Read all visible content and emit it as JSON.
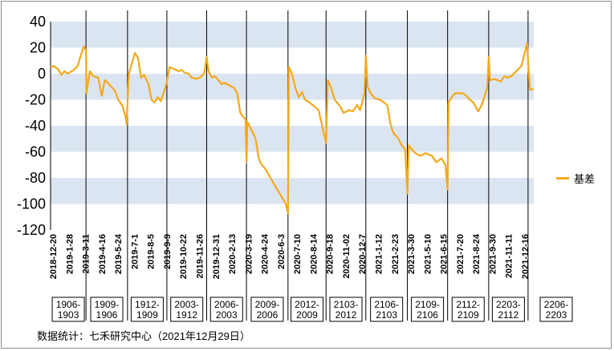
{
  "chart_data": {
    "type": "line",
    "ylim": [
      -120,
      40
    ],
    "yticks": [
      40,
      20,
      0,
      -20,
      -40,
      -60,
      -80,
      -100,
      -120
    ],
    "grid_bands": true,
    "legend_position": "right",
    "series": [
      {
        "name": "基差",
        "color": "#f5a81a",
        "points": [
          [
            "2018-12-20",
            5
          ],
          [
            "2018-12-28",
            6
          ],
          [
            "2019-01-07",
            3
          ],
          [
            "2019-01-14",
            -1
          ],
          [
            "2019-01-21",
            2
          ],
          [
            "2019-01-28",
            0
          ],
          [
            "2019-02-11",
            3
          ],
          [
            "2019-02-20",
            6
          ],
          [
            "2019-02-27",
            14
          ],
          [
            "2019-03-06",
            21
          ],
          [
            "2019-03-11",
            18
          ],
          [
            "2019-03-12",
            -15
          ],
          [
            "2019-03-20",
            2
          ],
          [
            "2019-03-28",
            -2
          ],
          [
            "2019-04-08",
            -3
          ],
          [
            "2019-04-16",
            -17
          ],
          [
            "2019-04-23",
            -5
          ],
          [
            "2019-04-30",
            -7
          ],
          [
            "2019-05-08",
            -10
          ],
          [
            "2019-05-16",
            -13
          ],
          [
            "2019-05-24",
            -20
          ],
          [
            "2019-06-03",
            -25
          ],
          [
            "2019-06-10",
            -34
          ],
          [
            "2019-06-12",
            -39
          ],
          [
            "2019-06-14",
            -22
          ],
          [
            "2019-06-17",
            0
          ],
          [
            "2019-06-24",
            8
          ],
          [
            "2019-07-01",
            16
          ],
          [
            "2019-07-08",
            12
          ],
          [
            "2019-07-15",
            -3
          ],
          [
            "2019-07-22",
            -1
          ],
          [
            "2019-08-01",
            -8
          ],
          [
            "2019-08-08",
            -20
          ],
          [
            "2019-08-15",
            -22
          ],
          [
            "2019-08-22",
            -18
          ],
          [
            "2019-08-29",
            -21
          ],
          [
            "2019-09-09",
            -10
          ],
          [
            "2019-09-12",
            -6
          ],
          [
            "2019-09-18",
            5
          ],
          [
            "2019-09-26",
            4
          ],
          [
            "2019-10-09",
            2
          ],
          [
            "2019-10-16",
            3
          ],
          [
            "2019-10-22",
            1
          ],
          [
            "2019-11-01",
            0
          ],
          [
            "2019-11-08",
            -3
          ],
          [
            "2019-11-18",
            -4
          ],
          [
            "2019-11-26",
            -3
          ],
          [
            "2019-12-06",
            0
          ],
          [
            "2019-12-12",
            13
          ],
          [
            "2019-12-16",
            2
          ],
          [
            "2019-12-24",
            -3
          ],
          [
            "2019-12-31",
            -2
          ],
          [
            "2020-01-08",
            -5
          ],
          [
            "2020-01-15",
            -8
          ],
          [
            "2020-01-22",
            -7
          ],
          [
            "2020-02-03",
            -9
          ],
          [
            "2020-02-07",
            -10
          ],
          [
            "2020-02-13",
            -11
          ],
          [
            "2020-02-20",
            -15
          ],
          [
            "2020-02-27",
            -30
          ],
          [
            "2020-03-04",
            -33
          ],
          [
            "2020-03-10",
            -35
          ],
          [
            "2020-03-12",
            -68
          ],
          [
            "2020-03-14",
            -37
          ],
          [
            "2020-03-19",
            -40
          ],
          [
            "2020-03-26",
            -45
          ],
          [
            "2020-04-02",
            -50
          ],
          [
            "2020-04-09",
            -65
          ],
          [
            "2020-04-16",
            -70
          ],
          [
            "2020-04-24",
            -73
          ],
          [
            "2020-05-06",
            -80
          ],
          [
            "2020-05-13",
            -84
          ],
          [
            "2020-05-20",
            -88
          ],
          [
            "2020-05-27",
            -92
          ],
          [
            "2020-06-03",
            -96
          ],
          [
            "2020-06-10",
            -100
          ],
          [
            "2020-06-15",
            -107
          ],
          [
            "2020-06-17",
            5
          ],
          [
            "2020-06-24",
            0
          ],
          [
            "2020-07-03",
            -12
          ],
          [
            "2020-07-10",
            -18
          ],
          [
            "2020-07-17",
            -14
          ],
          [
            "2020-07-24",
            -20
          ],
          [
            "2020-08-03",
            -22
          ],
          [
            "2020-08-14",
            -25
          ],
          [
            "2020-08-24",
            -28
          ],
          [
            "2020-09-01",
            -40
          ],
          [
            "2020-09-08",
            -50
          ],
          [
            "2020-09-10",
            -53
          ],
          [
            "2020-09-14",
            -5
          ],
          [
            "2020-09-21",
            -10
          ],
          [
            "2020-09-30",
            -20
          ],
          [
            "2020-10-12",
            -25
          ],
          [
            "2020-10-20",
            -30
          ],
          [
            "2020-11-02",
            -28
          ],
          [
            "2020-11-10",
            -29
          ],
          [
            "2020-11-20",
            -24
          ],
          [
            "2020-11-27",
            -28
          ],
          [
            "2020-12-07",
            -15
          ],
          [
            "2020-12-10",
            14
          ],
          [
            "2020-12-14",
            -10
          ],
          [
            "2020-12-21",
            -15
          ],
          [
            "2020-12-31",
            -19
          ],
          [
            "2021-01-12",
            -20
          ],
          [
            "2021-01-20",
            -22
          ],
          [
            "2021-01-28",
            -24
          ],
          [
            "2021-02-04",
            -38
          ],
          [
            "2021-02-10",
            -45
          ],
          [
            "2021-02-23",
            -50
          ],
          [
            "2021-03-02",
            -55
          ],
          [
            "2021-03-10",
            -58
          ],
          [
            "2021-03-15",
            -92
          ],
          [
            "2021-03-18",
            -55
          ],
          [
            "2021-03-30",
            -60
          ],
          [
            "2021-04-07",
            -62
          ],
          [
            "2021-04-15",
            -63
          ],
          [
            "2021-04-25",
            -61
          ],
          [
            "2021-05-10",
            -63
          ],
          [
            "2021-05-20",
            -68
          ],
          [
            "2021-06-01",
            -65
          ],
          [
            "2021-06-10",
            -70
          ],
          [
            "2021-06-15",
            -89
          ],
          [
            "2021-06-17",
            -22
          ],
          [
            "2021-06-24",
            -18
          ],
          [
            "2021-07-02",
            -15
          ],
          [
            "2021-07-20",
            -15
          ],
          [
            "2021-07-28",
            -17
          ],
          [
            "2021-08-05",
            -20
          ],
          [
            "2021-08-13",
            -22
          ],
          [
            "2021-08-24",
            -29
          ],
          [
            "2021-09-01",
            -24
          ],
          [
            "2021-09-08",
            -17
          ],
          [
            "2021-09-14",
            -10
          ],
          [
            "2021-09-17",
            13
          ],
          [
            "2021-09-20",
            -5
          ],
          [
            "2021-09-30",
            -4
          ],
          [
            "2021-10-15",
            -6
          ],
          [
            "2021-10-22",
            -2
          ],
          [
            "2021-11-01",
            -3
          ],
          [
            "2021-11-11",
            -1
          ],
          [
            "2021-11-22",
            3
          ],
          [
            "2021-12-01",
            6
          ],
          [
            "2021-12-10",
            18
          ],
          [
            "2021-12-14",
            24
          ],
          [
            "2021-12-16",
            10
          ],
          [
            "2021-12-20",
            -12
          ],
          [
            "2021-12-29",
            -12
          ]
        ]
      }
    ],
    "x_tick_labels": [
      "2018-12-20",
      "2019-1-28",
      "2019-3-11",
      "2019-4-16",
      "2019-5-24",
      "2019-7-1",
      "2019-8-5",
      "2019-9-9",
      "2019-10-22",
      "2019-11-26",
      "2019-12-31",
      "2020-2-13",
      "2020-3-19",
      "2020-4-24",
      "2020-6-3",
      "2020-7-10",
      "2020-8-14",
      "2020-9-18",
      "2020-11-02",
      "2020-12-7",
      "2021-1-12",
      "2021-2-23",
      "2021-3-30",
      "2021-5-10",
      "2021-6-15",
      "2021-7-20",
      "2021-8-24",
      "2021-9-30",
      "2021-11-11",
      "2021-12-16"
    ],
    "contract_switch_dates": [
      "2019-03-11",
      "2019-06-14",
      "2019-09-12",
      "2019-12-12",
      "2020-03-12",
      "2020-06-15",
      "2020-09-10",
      "2020-12-10",
      "2021-03-15",
      "2021-06-15",
      "2021-09-17",
      "2021-12-16"
    ],
    "contract_labels": [
      "1906-1903",
      "1909-1906",
      "1912-1909",
      "2003-1912",
      "2006-2003",
      "2009-2006",
      "2012-2009",
      "2103-2012",
      "2106-2103",
      "2109-2106",
      "2112-2109",
      "2203-2112",
      "2206-2203"
    ],
    "source_note": "数据统计：七禾研究中心（2021年12月29日）"
  }
}
